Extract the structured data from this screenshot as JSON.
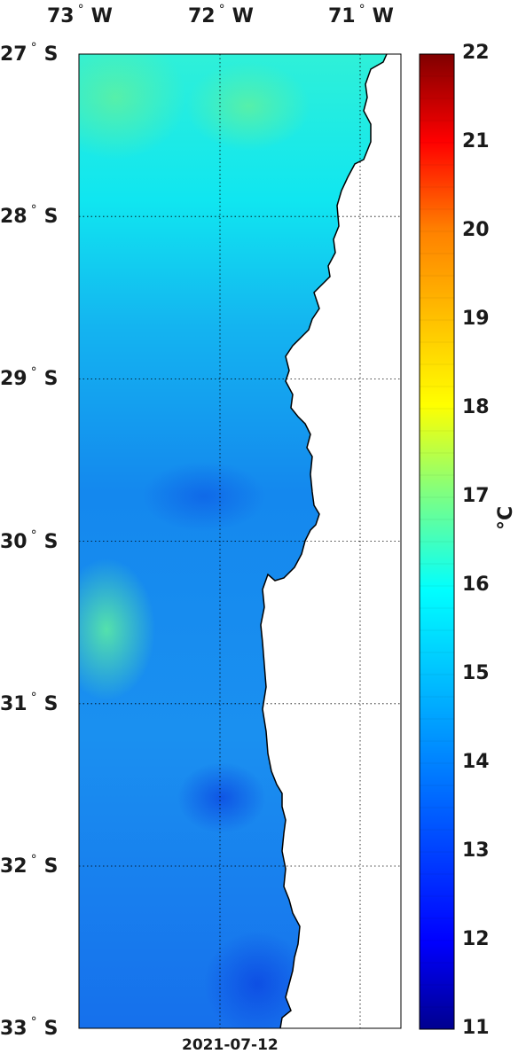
{
  "map": {
    "lon_ticks": [
      {
        "num": "73",
        "hemi": "W"
      },
      {
        "num": "72",
        "hemi": "W"
      },
      {
        "num": "71",
        "hemi": "W"
      }
    ],
    "lat_ticks": [
      {
        "num": "27",
        "hemi": "S"
      },
      {
        "num": "28",
        "hemi": "S"
      },
      {
        "num": "29",
        "hemi": "S"
      },
      {
        "num": "30",
        "hemi": "S"
      },
      {
        "num": "31",
        "hemi": "S"
      },
      {
        "num": "32",
        "hemi": "S"
      },
      {
        "num": "33",
        "hemi": "S"
      }
    ],
    "degree_symbol": "°",
    "date": "2021-07-12",
    "grid": true
  },
  "colorbar": {
    "min": 11,
    "max": 22,
    "ticks": [
      "11",
      "12",
      "13",
      "14",
      "15",
      "16",
      "17",
      "18",
      "19",
      "20",
      "21",
      "22"
    ],
    "unit": "°C",
    "colormap": "jet"
  },
  "colors": {
    "land": "#ffffff",
    "coast": "#000000",
    "grid": "#000000"
  }
}
